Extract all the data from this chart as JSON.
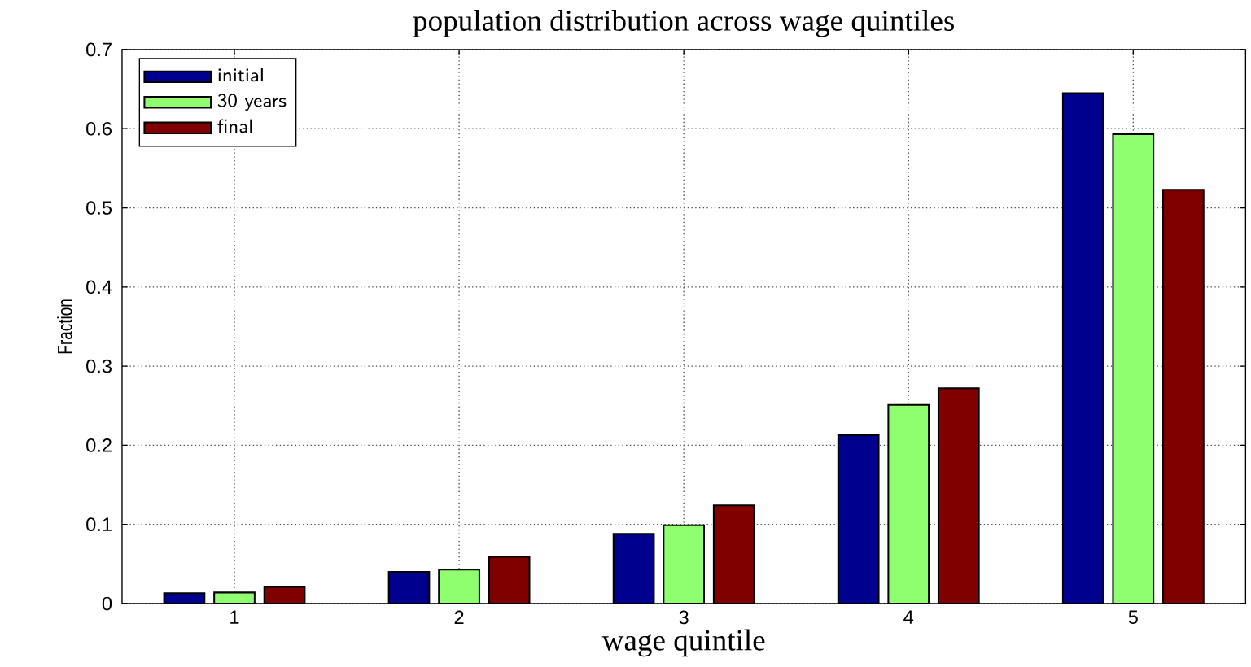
{
  "chart_data": {
    "type": "bar",
    "title": "population distribution across wage quintiles",
    "xlabel": "wage quintile",
    "ylabel": "Fraction",
    "categories": [
      "1",
      "2",
      "3",
      "4",
      "5"
    ],
    "series": [
      {
        "name": "initial",
        "color": "#00008f",
        "values": [
          0.013,
          0.04,
          0.088,
          0.213,
          0.645
        ]
      },
      {
        "name": "30 years",
        "color": "#8fff6f",
        "values": [
          0.014,
          0.043,
          0.099,
          0.251,
          0.593
        ]
      },
      {
        "name": "final",
        "color": "#800000",
        "values": [
          0.021,
          0.059,
          0.124,
          0.272,
          0.523
        ]
      }
    ],
    "ylim": [
      0,
      0.7
    ],
    "yticks": [
      0,
      0.1,
      0.2,
      0.3,
      0.4,
      0.5,
      0.6,
      0.7
    ],
    "grid": true,
    "legend": "top left"
  }
}
